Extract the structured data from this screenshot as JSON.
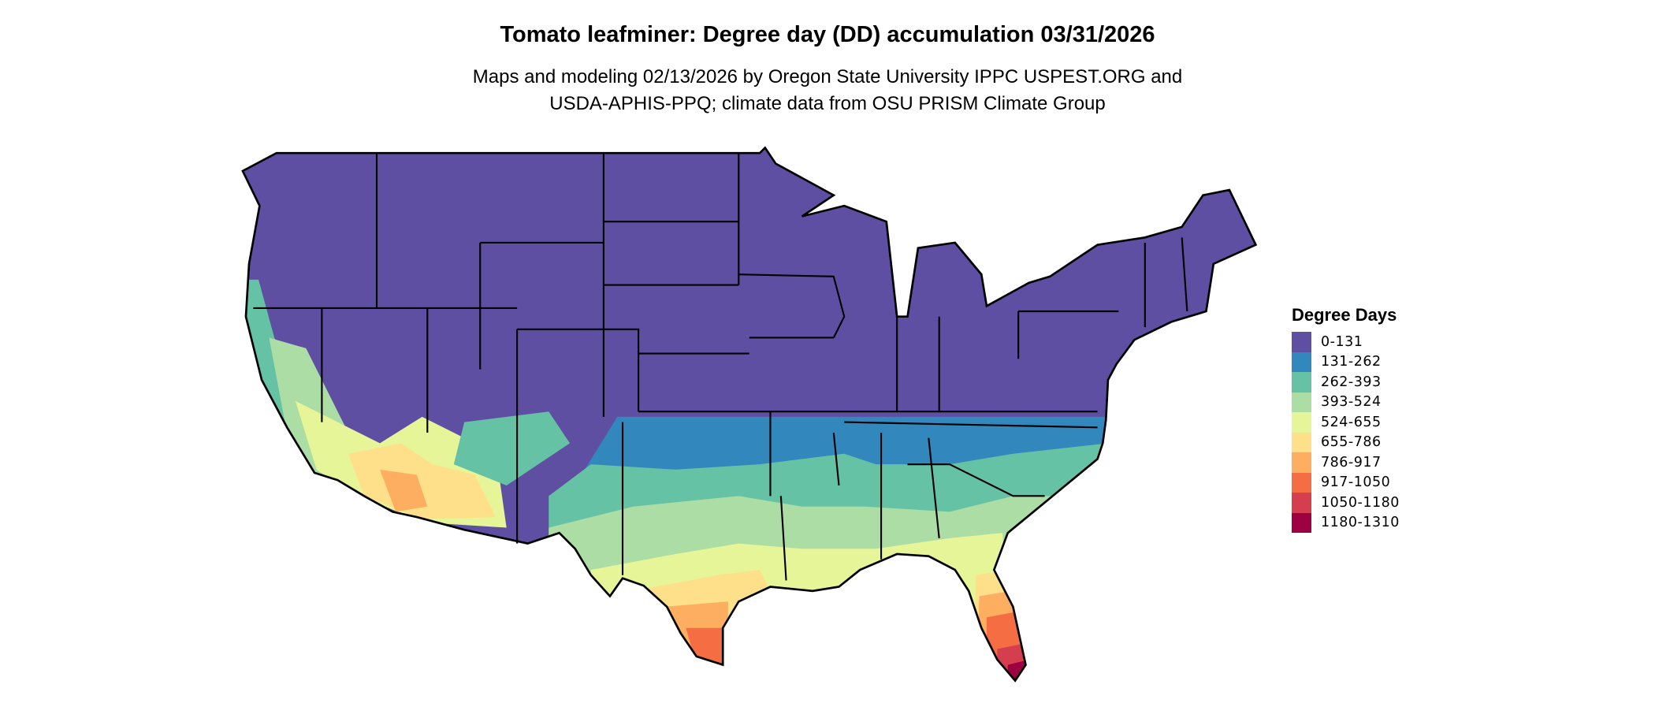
{
  "title": "Tomato leafminer: Degree day (DD) accumulation 03/31/2026",
  "subtitle_line1": "Maps and modeling 02/13/2026 by Oregon State University IPPC USPEST.ORG and",
  "subtitle_line2": "USDA-APHIS-PPQ; climate data from OSU PRISM Climate Group",
  "legend": {
    "title": "Degree Days",
    "items": [
      {
        "label": "0-131",
        "color": "#5E4FA2"
      },
      {
        "label": "131-262",
        "color": "#3288BD"
      },
      {
        "label": "262-393",
        "color": "#66C2A5"
      },
      {
        "label": "393-524",
        "color": "#ABDDA4"
      },
      {
        "label": "524-655",
        "color": "#E6F598"
      },
      {
        "label": "655-786",
        "color": "#FEE08B"
      },
      {
        "label": "786-917",
        "color": "#FDAE61"
      },
      {
        "label": "917-1050",
        "color": "#F46D43"
      },
      {
        "label": "1050-1180",
        "color": "#D53E4F"
      },
      {
        "label": "1180-1310",
        "color": "#9E0142"
      }
    ]
  },
  "map": {
    "region": "Contiguous United States",
    "border_color": "#000000"
  }
}
